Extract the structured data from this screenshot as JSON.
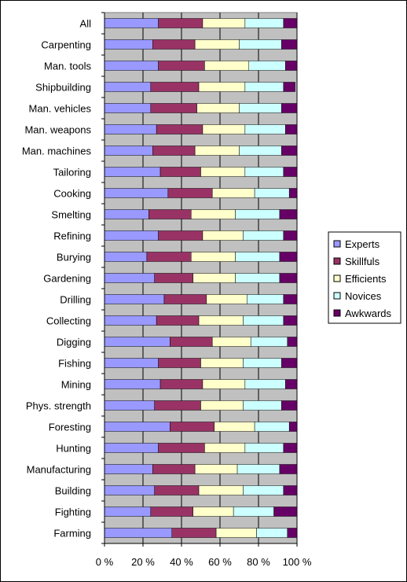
{
  "chart_data": {
    "type": "bar",
    "orientation": "horizontal",
    "stacked": true,
    "percent": true,
    "title": "",
    "xlabel": "",
    "ylabel": "",
    "xlim": [
      0,
      100
    ],
    "x_ticks": [
      "0 %",
      "20 %",
      "40 %",
      "60 %",
      "80 %",
      "100 %"
    ],
    "grid": true,
    "legend_position": "right",
    "plot_background": "#c0c0c0",
    "categories": [
      "All",
      "Carpenting",
      "Man. tools",
      "Shipbuilding",
      "Man. vehicles",
      "Man. weapons",
      "Man. machines",
      "Tailoring",
      "Cooking",
      "Smelting",
      "Refining",
      "Burying",
      "Gardening",
      "Drilling",
      "Collecting",
      "Digging",
      "Fishing",
      "Mining",
      "Phys. strength",
      "Foresting",
      "Hunting",
      "Manufacturing",
      "Building",
      "Fighting",
      "Farming"
    ],
    "series": [
      {
        "name": "Experts",
        "color": "#9999ff",
        "values": [
          28,
          25,
          28,
          24,
          24,
          27,
          25,
          29,
          33,
          23,
          28,
          22,
          26,
          31,
          27,
          34,
          28,
          29,
          26,
          34,
          28,
          25,
          26,
          24,
          35
        ]
      },
      {
        "name": "Skillfuls",
        "color": "#993366",
        "values": [
          23,
          22,
          24,
          25,
          24,
          24,
          22,
          21,
          23,
          22,
          23,
          23,
          20,
          22,
          22,
          22,
          22,
          22,
          24,
          23,
          24,
          22,
          23,
          22,
          23
        ]
      },
      {
        "name": "Efficients",
        "color": "#ffffcc",
        "values": [
          22,
          23,
          23,
          24,
          22,
          22,
          23,
          23,
          22,
          23,
          21,
          23,
          22,
          21,
          23,
          20,
          22,
          22,
          22,
          21,
          21,
          22,
          23,
          21,
          21
        ]
      },
      {
        "name": "Novices",
        "color": "#ccffff",
        "values": [
          20,
          22,
          19,
          20,
          22,
          21,
          22,
          20,
          18,
          23,
          21,
          23,
          23,
          19,
          21,
          19,
          20,
          21,
          20,
          18,
          20,
          22,
          21,
          21,
          16
        ]
      },
      {
        "name": "Awkwards",
        "color": "#660066",
        "values": [
          7,
          8,
          6,
          6,
          8,
          6,
          8,
          7,
          4,
          9,
          7,
          9,
          9,
          7,
          7,
          5,
          8,
          6,
          8,
          4,
          7,
          9,
          7,
          12,
          5
        ]
      }
    ]
  }
}
